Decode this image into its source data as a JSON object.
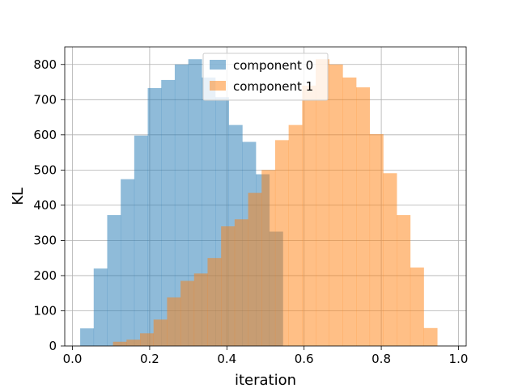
{
  "chart_data": {
    "type": "bar",
    "subtype": "histogram",
    "title": "",
    "xlabel": "iteration",
    "ylabel": "KL",
    "xlim": [
      -0.02,
      1.02
    ],
    "ylim": [
      0,
      850
    ],
    "xticks": [
      0.0,
      0.2,
      0.4,
      0.6,
      0.8,
      1.0
    ],
    "xtick_labels": [
      "0.0",
      "0.2",
      "0.4",
      "0.6",
      "0.8",
      "1.0"
    ],
    "yticks": [
      0,
      100,
      200,
      300,
      400,
      500,
      600,
      700,
      800
    ],
    "ytick_labels": [
      "0",
      "100",
      "200",
      "300",
      "400",
      "500",
      "600",
      "700",
      "800"
    ],
    "grid": true,
    "legend_position": "top-center",
    "bin_edges": [
      0.02,
      0.055,
      0.09,
      0.125,
      0.16,
      0.195,
      0.23,
      0.265,
      0.3,
      0.335,
      0.37,
      0.405,
      0.44,
      0.475,
      0.51,
      0.545,
      0.58,
      0.615,
      0.65,
      0.685,
      0.72,
      0.755,
      0.79,
      0.825,
      0.86,
      0.895,
      0.93,
      0.965,
      1.0
    ],
    "series": [
      {
        "name": "component 0",
        "color": "#1f77b4",
        "alpha": 0.5,
        "x_start": 0.02,
        "bin_width": 0.035,
        "values": [
          50,
          220,
          372,
          474,
          598,
          733,
          756,
          800,
          815,
          763,
          707,
          628,
          580,
          488,
          325
        ]
      },
      {
        "name": "component 1",
        "color": "#ff7f0e",
        "alpha": 0.5,
        "x_start": 0.105,
        "bin_width": 0.035,
        "values": [
          12,
          18,
          36,
          75,
          138,
          185,
          206,
          250,
          340,
          360,
          435,
          500,
          585,
          628,
          740,
          815,
          800,
          763,
          735,
          602,
          491,
          372,
          223,
          51
        ]
      }
    ]
  }
}
